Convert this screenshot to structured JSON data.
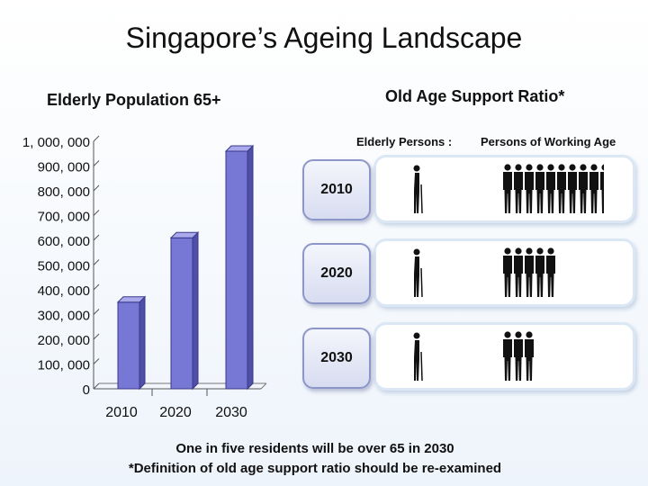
{
  "title": "Singapore’s Ageing Landscape",
  "left_subtitle": "Elderly Population 65+",
  "right_subtitle": "Old Age Support Ratio*",
  "chart_data": {
    "type": "bar",
    "categories": [
      "2010",
      "2020",
      "2030"
    ],
    "values": [
      350000,
      610000,
      960000
    ],
    "ylim": [
      0,
      1000000
    ],
    "yticks": [
      "0",
      "100, 000",
      "200, 000",
      "300, 000",
      "400, 000",
      "500, 000",
      "600, 000",
      "700, 000",
      "800, 000",
      "900, 000",
      "1, 000, 000"
    ],
    "colors": {
      "front": "#7777d6",
      "side": "#4f4fa8",
      "top": "#a9a9ec"
    }
  },
  "support_ratio": {
    "legend_elderly": "Elderly Persons :",
    "legend_working": "Persons of Working Age",
    "rows": [
      {
        "year": "2010",
        "elderly": 1,
        "working": 9.5
      },
      {
        "year": "2020",
        "elderly": 1,
        "working": 5
      },
      {
        "year": "2030",
        "elderly": 1,
        "working": 3
      }
    ]
  },
  "footer": {
    "line1": "One in five residents will be over 65  in 2030",
    "line2": "*Definition of old age support ratio should be re-examined"
  }
}
